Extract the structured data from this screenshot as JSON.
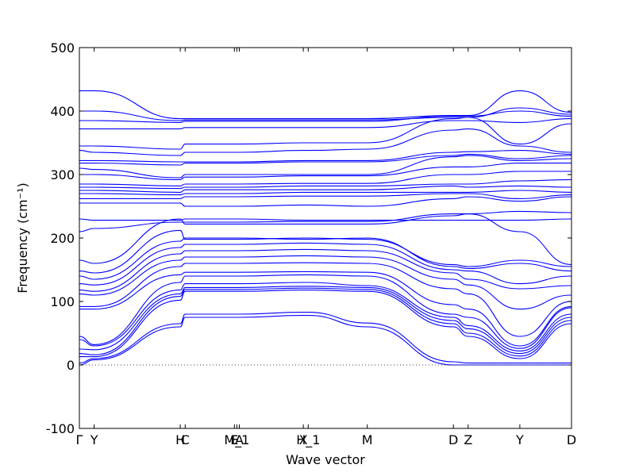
{
  "chart_data": {
    "type": "line",
    "xlabel": "Wave vector",
    "ylabel": "Frequency (cm⁻¹)",
    "ylim": [
      -100,
      500
    ],
    "yticks": [
      -100,
      0,
      100,
      200,
      300,
      400,
      500
    ],
    "grid": false,
    "zero_line": 0,
    "line_color": "#0000ff",
    "path": [
      {
        "label": "Γ",
        "x": 0.0
      },
      {
        "label": "Y",
        "x": 0.03
      },
      {
        "label": "H",
        "x": 0.205
      },
      {
        "label": "C",
        "x": 0.215
      },
      {
        "label": "E",
        "x": 0.315
      },
      {
        "label": "M_1",
        "x": 0.32
      },
      {
        "label": "A",
        "x": 0.325
      },
      {
        "label": "X",
        "x": 0.455
      },
      {
        "label": "H_1",
        "x": 0.465
      },
      {
        "label": "M",
        "x": 0.585
      },
      {
        "label": "D",
        "x": 0.76
      },
      {
        "label": "Z",
        "x": 0.79
      },
      {
        "label": "Y",
        "x": 0.895
      },
      {
        "label": "D",
        "x": 1.0
      }
    ],
    "series": [
      {
        "values": [
          0,
          8,
          60,
          75,
          75,
          75,
          75,
          78,
          78,
          60,
          0,
          0,
          0,
          0
        ]
      },
      {
        "values": [
          3,
          10,
          65,
          80,
          80,
          80,
          80,
          83,
          83,
          66,
          5,
          3,
          3,
          3
        ]
      },
      {
        "values": [
          13,
          13,
          102,
          116,
          116,
          116,
          116,
          118,
          118,
          116,
          60,
          45,
          10,
          65
        ]
      },
      {
        "values": [
          18,
          16,
          108,
          119,
          119,
          119,
          119,
          121,
          121,
          119,
          65,
          50,
          14,
          70
        ]
      },
      {
        "values": [
          25,
          24,
          112,
          122,
          122,
          122,
          122,
          124,
          124,
          122,
          70,
          57,
          18,
          75
        ]
      },
      {
        "values": [
          40,
          30,
          118,
          128,
          128,
          128,
          128,
          130,
          130,
          125,
          75,
          62,
          22,
          80
        ]
      },
      {
        "values": [
          45,
          32,
          130,
          140,
          140,
          140,
          140,
          142,
          142,
          140,
          80,
          75,
          26,
          90
        ]
      },
      {
        "values": [
          88,
          88,
          142,
          146,
          146,
          146,
          146,
          147,
          147,
          146,
          95,
          88,
          30,
          92
        ]
      },
      {
        "values": [
          92,
          92,
          155,
          160,
          160,
          160,
          160,
          161,
          161,
          160,
          120,
          112,
          45,
          100
        ]
      },
      {
        "values": [
          112,
          110,
          165,
          170,
          170,
          170,
          170,
          172,
          172,
          170,
          135,
          126,
          88,
          110
        ]
      },
      {
        "values": [
          118,
          116,
          175,
          180,
          180,
          180,
          180,
          182,
          182,
          180,
          145,
          135,
          120,
          125
        ]
      },
      {
        "values": [
          128,
          126,
          185,
          190,
          190,
          190,
          190,
          192,
          192,
          190,
          150,
          148,
          128,
          140
        ]
      },
      {
        "values": [
          140,
          135,
          195,
          200,
          200,
          200,
          200,
          198,
          198,
          200,
          155,
          152,
          160,
          148
        ]
      },
      {
        "values": [
          148,
          145,
          212,
          198,
          198,
          198,
          198,
          200,
          200,
          198,
          158,
          155,
          165,
          155
        ]
      },
      {
        "values": [
          165,
          160,
          230,
          222,
          222,
          222,
          222,
          222,
          222,
          222,
          235,
          238,
          210,
          158
        ]
      },
      {
        "values": [
          210,
          215,
          225,
          225,
          225,
          225,
          225,
          226,
          226,
          226,
          238,
          238,
          242,
          240
        ]
      },
      {
        "values": [
          230,
          228,
          228,
          230,
          230,
          230,
          230,
          228,
          228,
          228,
          228,
          228,
          228,
          230
        ]
      },
      {
        "values": [
          255,
          255,
          255,
          250,
          250,
          250,
          250,
          252,
          252,
          250,
          262,
          265,
          258,
          265
        ]
      },
      {
        "values": [
          262,
          262,
          262,
          265,
          265,
          265,
          265,
          266,
          266,
          266,
          270,
          270,
          262,
          268
        ]
      },
      {
        "values": [
          270,
          270,
          268,
          270,
          270,
          270,
          270,
          272,
          272,
          272,
          272,
          272,
          275,
          272
        ]
      },
      {
        "values": [
          275,
          275,
          272,
          276,
          276,
          276,
          276,
          276,
          276,
          276,
          282,
          280,
          282,
          280
        ]
      },
      {
        "values": [
          280,
          280,
          278,
          280,
          280,
          280,
          280,
          282,
          282,
          282,
          285,
          285,
          290,
          292
        ]
      },
      {
        "values": [
          285,
          285,
          282,
          285,
          285,
          285,
          285,
          286,
          286,
          286,
          300,
          300,
          305,
          305
        ]
      },
      {
        "values": [
          300,
          300,
          292,
          296,
          296,
          296,
          296,
          298,
          298,
          298,
          312,
          312,
          318,
          318
        ]
      },
      {
        "values": [
          310,
          308,
          295,
          300,
          300,
          300,
          300,
          300,
          300,
          300,
          328,
          330,
          322,
          325
        ]
      },
      {
        "values": [
          318,
          318,
          315,
          318,
          318,
          318,
          318,
          320,
          320,
          320,
          330,
          332,
          325,
          330
        ]
      },
      {
        "values": [
          322,
          322,
          320,
          320,
          320,
          320,
          320,
          322,
          322,
          322,
          335,
          336,
          338,
          332
        ]
      },
      {
        "values": [
          338,
          335,
          330,
          335,
          335,
          335,
          335,
          338,
          338,
          340,
          370,
          372,
          345,
          335
        ]
      },
      {
        "values": [
          345,
          345,
          340,
          348,
          348,
          348,
          348,
          350,
          350,
          350,
          388,
          390,
          348,
          380
        ]
      },
      {
        "values": [
          372,
          372,
          372,
          374,
          374,
          374,
          374,
          374,
          374,
          374,
          385,
          385,
          382,
          388
        ]
      },
      {
        "values": [
          385,
          385,
          382,
          384,
          384,
          384,
          384,
          384,
          384,
          384,
          392,
          392,
          400,
          392
        ]
      },
      {
        "values": [
          400,
          400,
          385,
          386,
          386,
          386,
          386,
          386,
          386,
          386,
          390,
          390,
          405,
          395
        ]
      },
      {
        "values": [
          432,
          432,
          388,
          388,
          388,
          388,
          388,
          388,
          388,
          388,
          393,
          393,
          432,
          398
        ]
      }
    ]
  }
}
